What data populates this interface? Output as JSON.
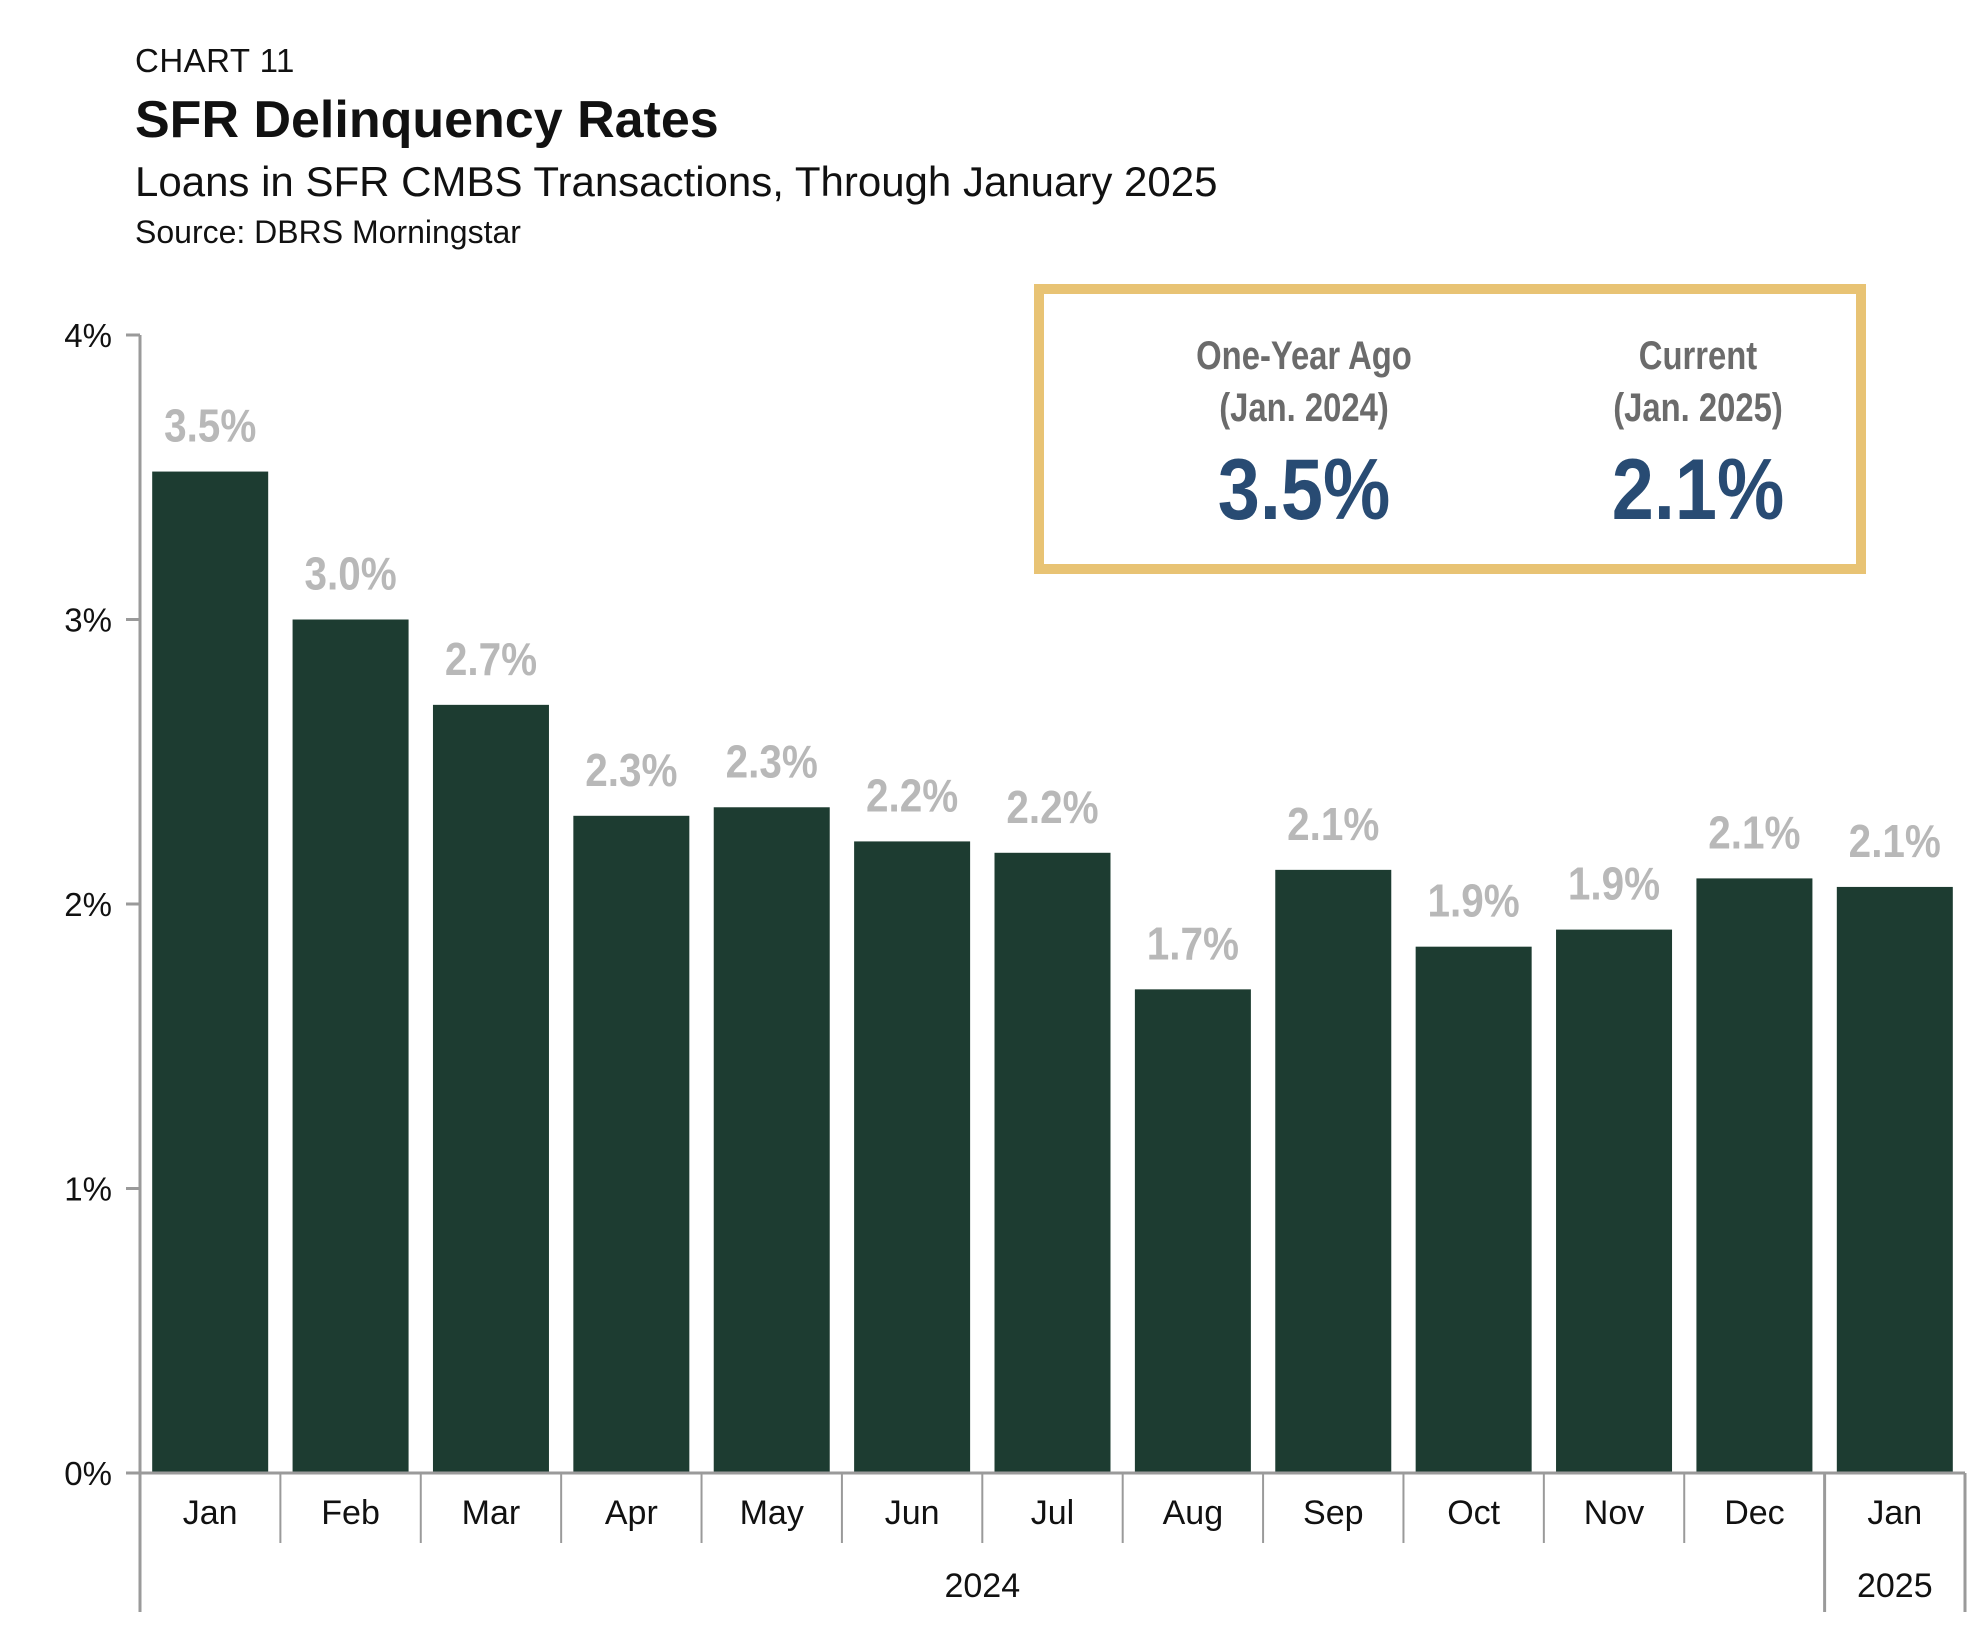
{
  "header": {
    "label": "CHART 11",
    "title": "SFR Delinquency Rates",
    "subtitle": "Loans in SFR CMBS Transactions, Through January 2025",
    "source": "Source: DBRS Morningstar"
  },
  "callout": {
    "left": {
      "label_line1": "One-Year Ago",
      "label_line2": "(Jan. 2024)",
      "value": "3.5%"
    },
    "right": {
      "label_line1": "Current",
      "label_line2": "(Jan. 2025)",
      "value": "2.1%"
    }
  },
  "colors": {
    "bar": "#1d3c31",
    "data_label": "#b8b8b8",
    "callout_border": "#e8c374",
    "callout_value": "#284b73",
    "axis": "#9a9a9a"
  },
  "chart_data": {
    "type": "bar",
    "categories": [
      "Jan",
      "Feb",
      "Mar",
      "Apr",
      "May",
      "Jun",
      "Jul",
      "Aug",
      "Sep",
      "Oct",
      "Nov",
      "Dec",
      "Jan"
    ],
    "values": [
      3.52,
      3.0,
      2.7,
      2.31,
      2.34,
      2.22,
      2.18,
      1.7,
      2.12,
      1.85,
      1.91,
      2.09,
      2.06
    ],
    "data_labels": [
      "3.5%",
      "3.0%",
      "2.7%",
      "2.3%",
      "2.3%",
      "2.2%",
      "2.2%",
      "1.7%",
      "2.1%",
      "1.9%",
      "1.9%",
      "2.1%",
      "2.1%"
    ],
    "ylim": [
      0,
      4
    ],
    "y_ticks": [
      0,
      1,
      2,
      3,
      4
    ],
    "y_tick_labels": [
      "0%",
      "1%",
      "2%",
      "3%",
      "4%"
    ],
    "year_groups": [
      {
        "label": "2024",
        "start": 0,
        "end": 11
      },
      {
        "label": "2025",
        "start": 12,
        "end": 12
      }
    ],
    "xlabel": "",
    "ylabel": "",
    "grid": false,
    "legend": "none"
  }
}
